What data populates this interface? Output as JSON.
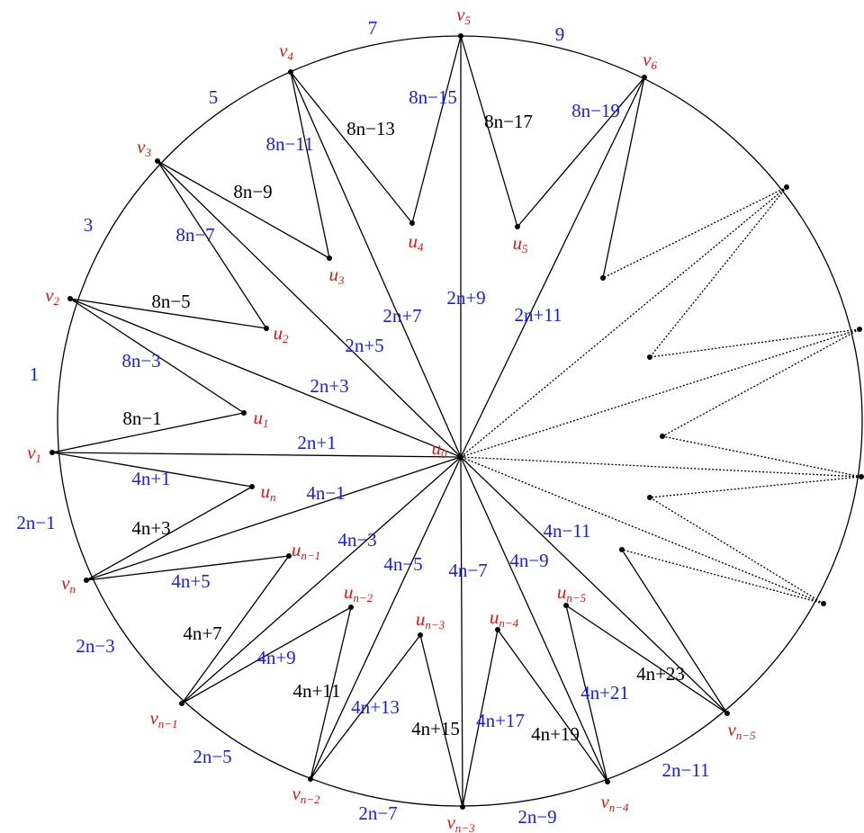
{
  "nodes": [
    {
      "label": "v",
      "sub": "1"
    },
    {
      "label": "v",
      "sub": "2"
    },
    {
      "label": "v",
      "sub": "3"
    },
    {
      "label": "v",
      "sub": "4"
    },
    {
      "label": "v",
      "sub": "5"
    },
    {
      "label": "v",
      "sub": "6"
    },
    {
      "label": "v",
      "sub": "n"
    },
    {
      "label": "v",
      "sub": "n−1"
    },
    {
      "label": "v",
      "sub": "n−2"
    },
    {
      "label": "v",
      "sub": "n−3"
    },
    {
      "label": "v",
      "sub": "n−4"
    },
    {
      "label": "v",
      "sub": "n−5"
    },
    {
      "label": "u",
      "sub": "0"
    },
    {
      "label": "u",
      "sub": "1"
    },
    {
      "label": "u",
      "sub": "2"
    },
    {
      "label": "u",
      "sub": "3"
    },
    {
      "label": "u",
      "sub": "4"
    },
    {
      "label": "u",
      "sub": "5"
    },
    {
      "label": "u",
      "sub": "n"
    },
    {
      "label": "u",
      "sub": "n−1"
    },
    {
      "label": "u",
      "sub": "n−2"
    },
    {
      "label": "u",
      "sub": "n−3"
    },
    {
      "label": "u",
      "sub": "n−4"
    },
    {
      "label": "u",
      "sub": "n−5"
    }
  ],
  "edge_labels": [
    {
      "text": "7",
      "color": "#1a1aff"
    },
    {
      "text": "9",
      "color": "#1a1aff"
    },
    {
      "text": "5",
      "color": "#1a1aff"
    },
    {
      "text": "3",
      "color": "#1a1aff"
    },
    {
      "text": "1",
      "color": "#1a1aff"
    },
    {
      "text": "2n−1",
      "color": "#1a1aff"
    },
    {
      "text": "2n−3",
      "color": "#1a1aff"
    },
    {
      "text": "2n−5",
      "color": "#1a1aff"
    },
    {
      "text": "2n−7",
      "color": "#1a1aff"
    },
    {
      "text": "2n−9",
      "color": "#1a1aff"
    },
    {
      "text": "2n−11",
      "color": "#1a1aff"
    },
    {
      "text": "2n+1",
      "color": "#1a1aff"
    },
    {
      "text": "2n+3",
      "color": "#1a1aff"
    },
    {
      "text": "2n+5",
      "color": "#1a1aff"
    },
    {
      "text": "2n+7",
      "color": "#1a1aff"
    },
    {
      "text": "2n+9",
      "color": "#1a1aff"
    },
    {
      "text": "2n+11",
      "color": "#1a1aff"
    },
    {
      "text": "4n−1",
      "color": "#1a1aff"
    },
    {
      "text": "4n−3",
      "color": "#1a1aff"
    },
    {
      "text": "4n−5",
      "color": "#1a1aff"
    },
    {
      "text": "4n−7",
      "color": "#1a1aff"
    },
    {
      "text": "4n−9",
      "color": "#1a1aff"
    },
    {
      "text": "4n−11",
      "color": "#1a1aff"
    },
    {
      "text": "8n−15",
      "color": "#1a1aff"
    },
    {
      "text": "8n−19",
      "color": "#1a1aff"
    },
    {
      "text": "8n−11",
      "color": "#1a1aff"
    },
    {
      "text": "8n−7",
      "color": "#1a1aff"
    },
    {
      "text": "8n−3",
      "color": "#1a1aff"
    },
    {
      "text": "4n+1",
      "color": "#1a1aff"
    },
    {
      "text": "4n+5",
      "color": "#1a1aff"
    },
    {
      "text": "4n+9",
      "color": "#1a1aff"
    },
    {
      "text": "4n+13",
      "color": "#1a1aff"
    },
    {
      "text": "4n+17",
      "color": "#1a1aff"
    },
    {
      "text": "4n+21",
      "color": "#1a1aff"
    },
    {
      "text": "8n−17",
      "color": "#000000"
    },
    {
      "text": "8n−13",
      "color": "#000000"
    },
    {
      "text": "8n−9",
      "color": "#000000"
    },
    {
      "text": "8n−5",
      "color": "#000000"
    },
    {
      "text": "8n−1",
      "color": "#000000"
    },
    {
      "text": "4n+3",
      "color": "#000000"
    },
    {
      "text": "4n+7",
      "color": "#000000"
    },
    {
      "text": "4n+11",
      "color": "#000000"
    },
    {
      "text": "4n+15",
      "color": "#000000"
    },
    {
      "text": "4n+19",
      "color": "#000000"
    },
    {
      "text": "4n+23",
      "color": "#000000"
    }
  ],
  "node_label_color": "#ee1111"
}
